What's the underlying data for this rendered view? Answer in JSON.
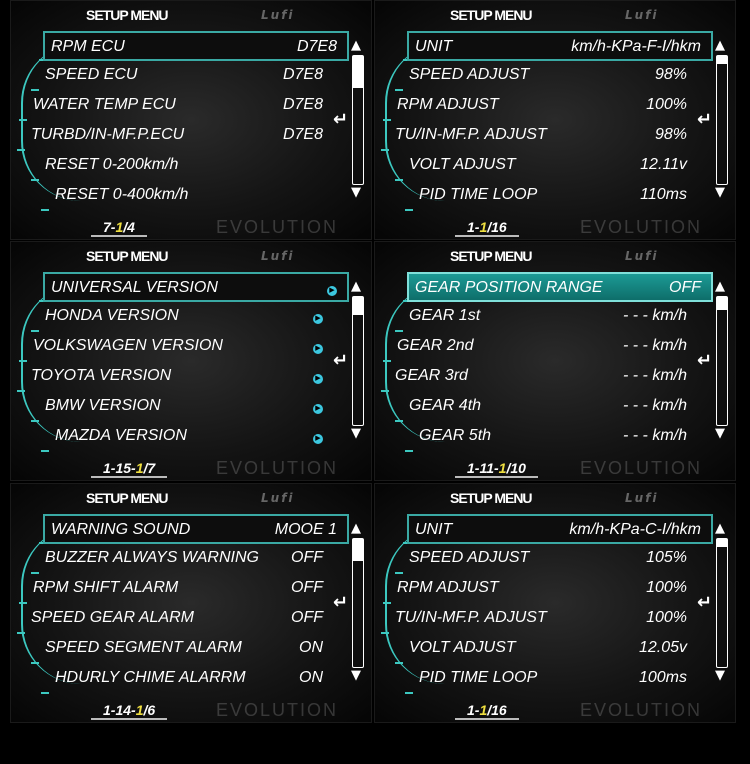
{
  "accent_color": "#3cc8c0",
  "panels": [
    {
      "title": "SETUP MENU",
      "selected_style": "outline",
      "scroll_fraction": 0.25,
      "items": [
        {
          "label": "RPM ECU",
          "value": "D7E8"
        },
        {
          "label": "SPEED ECU",
          "value": "D7E8"
        },
        {
          "label": "WATER TEMP ECU",
          "value": "D7E8"
        },
        {
          "label": "TURBD/IN-MF.P.ECU",
          "value": "D7E8"
        },
        {
          "label": "RESET 0-200km/h",
          "value": ""
        },
        {
          "label": "RESET 0-400km/h",
          "value": ""
        }
      ],
      "page": {
        "prefix": "7-",
        "current": "1",
        "suffix": "/4"
      },
      "watermark": "EVOLUTION",
      "logo": "Lufi"
    },
    {
      "title": "SETUP MENU",
      "selected_style": "outline",
      "scroll_fraction": 0.0625,
      "items": [
        {
          "label": "UNIT",
          "value": "km/h-KPa-F-I/hkm"
        },
        {
          "label": "SPEED ADJUST",
          "value": "98%"
        },
        {
          "label": "RPM ADJUST",
          "value": "100%"
        },
        {
          "label": "TU/IN-MF.P. ADJUST",
          "value": "98%"
        },
        {
          "label": "VOLT ADJUST",
          "value": "12.11v"
        },
        {
          "label": "PID TIME LOOP",
          "value": "110ms"
        }
      ],
      "page": {
        "prefix": "1-",
        "current": "1",
        "suffix": "/16"
      },
      "watermark": "EVOLUTION",
      "logo": "Lufi"
    },
    {
      "title": "SETUP MENU",
      "selected_style": "outline",
      "scroll_fraction": 0.14,
      "items": [
        {
          "label": "UNIVERSAL VERSION",
          "value": "",
          "icon": "arrow-right-circle"
        },
        {
          "label": "HONDA VERSION",
          "value": "",
          "icon": "arrow-right-circle"
        },
        {
          "label": "VOLKSWAGEN VERSION",
          "value": "",
          "icon": "arrow-right-circle"
        },
        {
          "label": "TOYOTA VERSION",
          "value": "",
          "icon": "arrow-right-circle"
        },
        {
          "label": "BMW VERSION",
          "value": "",
          "icon": "arrow-right-circle"
        },
        {
          "label": "MAZDA VERSION",
          "value": "",
          "icon": "arrow-right-circle"
        }
      ],
      "page": {
        "prefix": "1-15-",
        "current": "1",
        "suffix": "/7"
      },
      "watermark": "EVOLUTION",
      "logo": "Lufi"
    },
    {
      "title": "SETUP MENU",
      "selected_style": "fill",
      "scroll_fraction": 0.1,
      "items": [
        {
          "label": "GEAR POSITION RANGE",
          "value": "OFF"
        },
        {
          "label": "GEAR 1st",
          "value": "- - - km/h"
        },
        {
          "label": "GEAR 2nd",
          "value": "- - - km/h"
        },
        {
          "label": "GEAR 3rd",
          "value": "- - - km/h"
        },
        {
          "label": "GEAR 4th",
          "value": "- - - km/h"
        },
        {
          "label": "GEAR 5th",
          "value": "- - - km/h"
        }
      ],
      "page": {
        "prefix": "1-11-",
        "current": "1",
        "suffix": "/10"
      },
      "watermark": "EVOLUTION",
      "logo": "Lufi"
    },
    {
      "title": "SETUP MENU",
      "selected_style": "outline",
      "scroll_fraction": 0.17,
      "items": [
        {
          "label": "WARNING SOUND",
          "value": "MOOE 1"
        },
        {
          "label": "BUZZER ALWAYS WARNING",
          "value": "OFF"
        },
        {
          "label": "RPM SHIFT ALARM",
          "value": "OFF"
        },
        {
          "label": "SPEED GEAR ALARM",
          "value": "OFF"
        },
        {
          "label": "SPEED SEGMENT ALARM",
          "value": "ON"
        },
        {
          "label": "HDURLY CHIME ALARRM",
          "value": "ON"
        }
      ],
      "page": {
        "prefix": "1-14-",
        "current": "1",
        "suffix": "/6"
      },
      "watermark": "EVOLUTION",
      "logo": "Lufi"
    },
    {
      "title": "SETUP MENU",
      "selected_style": "outline",
      "scroll_fraction": 0.0625,
      "items": [
        {
          "label": "UNIT",
          "value": "km/h-KPa-C-I/hkm"
        },
        {
          "label": "SPEED ADJUST",
          "value": "105%"
        },
        {
          "label": "RPM ADJUST",
          "value": "100%"
        },
        {
          "label": "TU/IN-MF.P. ADJUST",
          "value": "100%"
        },
        {
          "label": "VOLT ADJUST",
          "value": "12.05v"
        },
        {
          "label": "PID TIME LOOP",
          "value": "100ms"
        }
      ],
      "page": {
        "prefix": "1-",
        "current": "1",
        "suffix": "/16"
      },
      "watermark": "EVOLUTION",
      "logo": "Lufi"
    }
  ],
  "icons": {
    "scroll_up": "▲",
    "scroll_down": "▼",
    "enter": "↵",
    "go": "▶"
  }
}
